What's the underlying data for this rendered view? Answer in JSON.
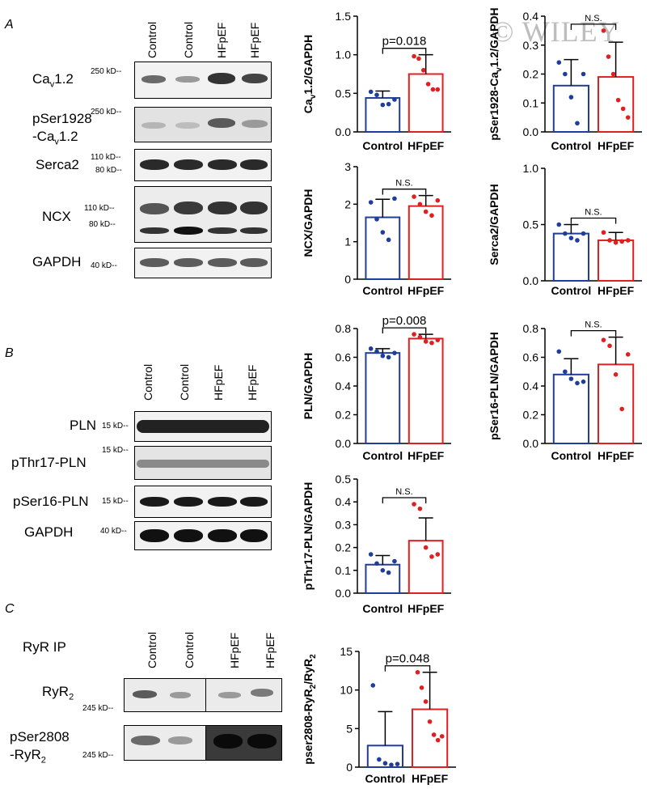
{
  "watermark": "© WILEY",
  "colors": {
    "control": "#1f3d9a",
    "hfpef": "#e02020"
  },
  "panels": {
    "A": {
      "letter": "A",
      "lanes": [
        "Control",
        "Control",
        "HFpEF",
        "HFpEF"
      ],
      "blots": [
        {
          "name_main": "Ca",
          "name_sub": "v",
          "name_tail": "1.2",
          "kd": [
            "250 kD--"
          ]
        },
        {
          "name_main": "pSer1928",
          "name_line2_main": "-Ca",
          "name_line2_sub": "v",
          "name_line2_tail": "1.2",
          "kd": [
            "250 kD--"
          ]
        },
        {
          "name_main": "Serca2",
          "kd": [
            "110 kD--",
            "80 kD--"
          ]
        },
        {
          "name_main": "NCX",
          "kd": [
            "110 kD--",
            "80 kD--"
          ]
        },
        {
          "name_main": "GAPDH",
          "kd": [
            "40 kD--"
          ]
        }
      ]
    },
    "B": {
      "letter": "B",
      "lanes": [
        "Control",
        "Control",
        "HFpEF",
        "HFpEF"
      ],
      "blots": [
        {
          "name_main": "PLN",
          "kd": [
            "15 kD--"
          ]
        },
        {
          "name_main": "pThr17-PLN",
          "kd": [
            "15 kD--"
          ]
        },
        {
          "name_main": "pSer16-PLN",
          "kd": [
            "15 kD--"
          ]
        },
        {
          "name_main": "GAPDH",
          "kd": [
            "40 kD--"
          ]
        }
      ]
    },
    "C": {
      "letter": "C",
      "ip_label": "RyR IP",
      "lanes": [
        "Control",
        "Control",
        "HFpEF",
        "HFpEF"
      ],
      "blots": [
        {
          "name_main": "RyR",
          "name_sub": "2",
          "kd": [
            "245 kD--"
          ]
        },
        {
          "name_main": "pSer2808",
          "name_line2_main": "-RyR",
          "name_line2_sub": "2",
          "kd": [
            "245 kD--"
          ]
        }
      ]
    }
  },
  "chart_data": [
    {
      "id": "cav12",
      "type": "bar",
      "categories": [
        "Control",
        "HFpEF"
      ],
      "values": [
        0.44,
        0.75
      ],
      "error": [
        0.09,
        0.25
      ],
      "points": [
        [
          0.52,
          0.48,
          0.35,
          0.36,
          0.42
        ],
        [
          0.98,
          0.95,
          0.8,
          0.62,
          0.55,
          0.55
        ]
      ],
      "ylabel_main": "Ca",
      "ylabel_sub": "v",
      "ylabel_tail": "1.2/GAPDH",
      "ylim": [
        0,
        1.5
      ],
      "ticks": [
        "0.0",
        "0.5",
        "1.0",
        "1.5"
      ],
      "annotation": "p=0.018"
    },
    {
      "id": "pser1928",
      "type": "bar",
      "categories": [
        "Control",
        "HFpEF"
      ],
      "values": [
        0.16,
        0.19
      ],
      "error": [
        0.09,
        0.12
      ],
      "points": [
        [
          0.24,
          0.2,
          0.12,
          0.03,
          0.2
        ],
        [
          0.35,
          0.26,
          0.2,
          0.11,
          0.08,
          0.05
        ]
      ],
      "ylabel_main": "pSer1928-Ca",
      "ylabel_sub": "v",
      "ylabel_tail": "1.2/GAPDH",
      "ylim": [
        0,
        0.4
      ],
      "ticks": [
        "0.0",
        "0.1",
        "0.2",
        "0.3",
        "0.4"
      ],
      "annotation": "N.S."
    },
    {
      "id": "ncx",
      "type": "bar",
      "categories": [
        "Control",
        "HFpEF"
      ],
      "values": [
        1.65,
        1.95
      ],
      "error": [
        0.48,
        0.28
      ],
      "points": [
        [
          2.05,
          1.6,
          1.25,
          1.05,
          2.15
        ],
        [
          2.2,
          2.0,
          1.8,
          1.7,
          2.1
        ]
      ],
      "ylabel_main": "NCX/GAPDH",
      "ylim": [
        0,
        3
      ],
      "ticks": [
        "0",
        "1",
        "2",
        "3"
      ],
      "annotation": "N.S."
    },
    {
      "id": "serca2",
      "type": "bar",
      "categories": [
        "Control",
        "HFpEF"
      ],
      "values": [
        0.42,
        0.36
      ],
      "error": [
        0.08,
        0.07
      ],
      "points": [
        [
          0.5,
          0.42,
          0.38,
          0.36,
          0.42
        ],
        [
          0.43,
          0.36,
          0.34,
          0.35,
          0.36
        ]
      ],
      "ylabel_main": "Serca2/GAPDH",
      "ylim": [
        0,
        1.0
      ],
      "ticks": [
        "0.0",
        "0.5",
        "1.0"
      ],
      "annotation": "N.S."
    },
    {
      "id": "pln",
      "type": "bar",
      "categories": [
        "Control",
        "HFpEF"
      ],
      "values": [
        0.63,
        0.73
      ],
      "error": [
        0.03,
        0.03
      ],
      "points": [
        [
          0.66,
          0.64,
          0.61,
          0.6,
          0.63
        ],
        [
          0.76,
          0.74,
          0.71,
          0.7,
          0.72
        ]
      ],
      "ylabel_main": "PLN/GAPDH",
      "ylim": [
        0,
        0.8
      ],
      "ticks": [
        "0.0",
        "0.2",
        "0.4",
        "0.6",
        "0.8"
      ],
      "annotation": "p=0.008"
    },
    {
      "id": "pser16",
      "type": "bar",
      "categories": [
        "Control",
        "HFpEF"
      ],
      "values": [
        0.48,
        0.55
      ],
      "error": [
        0.11,
        0.19
      ],
      "points": [
        [
          0.64,
          0.5,
          0.45,
          0.42,
          0.43
        ],
        [
          0.72,
          0.68,
          0.48,
          0.24,
          0.62
        ]
      ],
      "ylabel_main": "pSer16-PLN/GAPDH",
      "ylim": [
        0,
        0.8
      ],
      "ticks": [
        "0.0",
        "0.2",
        "0.4",
        "0.6",
        "0.8"
      ],
      "annotation": "N.S."
    },
    {
      "id": "pthr17",
      "type": "bar",
      "categories": [
        "Control",
        "HFpEF"
      ],
      "values": [
        0.125,
        0.23
      ],
      "error": [
        0.04,
        0.1
      ],
      "points": [
        [
          0.17,
          0.13,
          0.1,
          0.09,
          0.14
        ],
        [
          0.39,
          0.37,
          0.2,
          0.16,
          0.17
        ]
      ],
      "ylabel_main": "pThr17-PLN/GAPDH",
      "ylim": [
        0,
        0.5
      ],
      "ticks": [
        "0.0",
        "0.1",
        "0.2",
        "0.3",
        "0.4",
        "0.5"
      ],
      "annotation": "N.S."
    },
    {
      "id": "pser2808",
      "type": "bar",
      "categories": [
        "Control",
        "HFpEF"
      ],
      "values": [
        2.8,
        7.5
      ],
      "error": [
        4.4,
        4.8
      ],
      "points": [
        [
          10.6,
          1.0,
          0.5,
          0.3,
          0.4
        ],
        [
          12.3,
          10.3,
          8.5,
          5.9,
          4.2,
          3.5,
          4.0
        ]
      ],
      "ylabel_main": "pser2808-RyR",
      "ylabel_sub": "2",
      "ylabel_tail": "/RyR",
      "ylabel_sub2": "2",
      "ylim": [
        0,
        15
      ],
      "ticks": [
        "0",
        "5",
        "10",
        "15"
      ],
      "annotation": "p=0.048"
    }
  ]
}
